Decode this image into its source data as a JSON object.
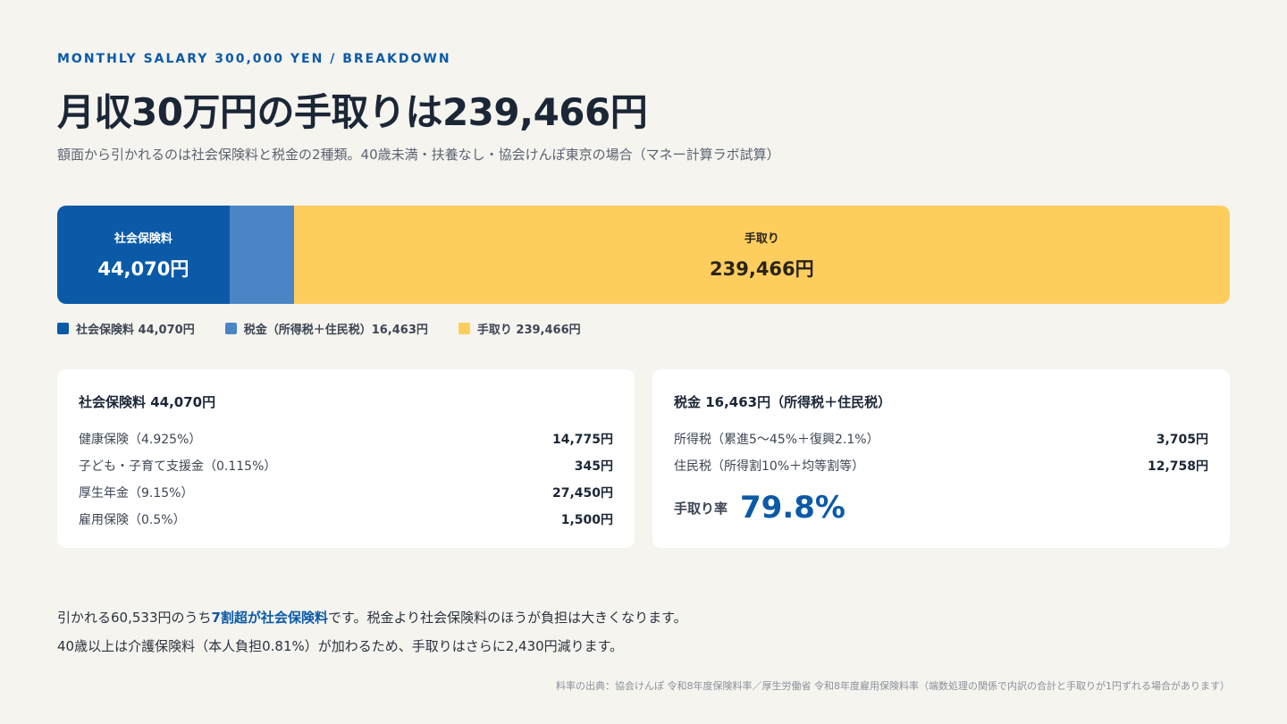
{
  "header": {
    "eyebrow": "MONTHLY SALARY 300,000 YEN / BREAKDOWN",
    "title": "月収30万円の手取りは239,466円",
    "subtitle": "額面から引かれるのは社会保険料と税金の2種類。40歳未満・扶養なし・協会けんぽ東京の場合（マネー計算ラボ試算）"
  },
  "chart_data": {
    "type": "bar",
    "orientation": "horizontal-stacked",
    "total": 300000,
    "series": [
      {
        "name": "社会保険料",
        "value": 44070,
        "color": "#0b5aa8",
        "bar_label": "社会保険料",
        "bar_value": "44,070円",
        "text_color": "#ffffff"
      },
      {
        "name": "税金（所得税＋住民税）",
        "value": 16463,
        "color": "#4a86c6",
        "bar_label": "",
        "bar_value": "",
        "text_color": "#ffffff"
      },
      {
        "name": "手取り",
        "value": 239466,
        "color": "#fdcd5e",
        "bar_label": "手取り",
        "bar_value": "239,466円",
        "text_color": "#2a2418"
      }
    ],
    "legend": [
      {
        "label": "社会保険料 44,070円",
        "color": "#0b5aa8"
      },
      {
        "label": "税金（所得税＋住民税）16,463円",
        "color": "#4a86c6"
      },
      {
        "label": "手取り 239,466円",
        "color": "#fdcd5e"
      }
    ]
  },
  "social_card": {
    "title": "社会保険料 44,070円",
    "rows": [
      {
        "label": "健康保険（4.925%）",
        "amount": "14,775円"
      },
      {
        "label": "子ども・子育て支援金（0.115%）",
        "amount": "345円"
      },
      {
        "label": "厚生年金（9.15%）",
        "amount": "27,450円"
      },
      {
        "label": "雇用保険（0.5%）",
        "amount": "1,500円"
      }
    ]
  },
  "tax_card": {
    "title": "税金 16,463円（所得税＋住民税）",
    "rows": [
      {
        "label": "所得税（累進5〜45%＋復興2.1%）",
        "amount": "3,705円"
      },
      {
        "label": "住民税（所得割10%＋均等割等）",
        "amount": "12,758円"
      }
    ],
    "rate_label": "手取り率",
    "rate_value": "79.8%"
  },
  "notes": {
    "line1_pre": "引かれる60,533円のうち",
    "line1_highlight": "7割超が社会保険料",
    "line1_post": "です。税金より社会保険料のほうが負担は大きくなります。",
    "line2": "40歳以上は介護保険料（本人負担0.81%）が加わるため、手取りはさらに2,430円減ります。"
  },
  "source": "料率の出典：協会けんぽ 令和8年度保険料率／厚生労働省 令和8年度雇用保険料率（端数処理の関係で内訳の合計と手取りが1円ずれる場合があります）"
}
